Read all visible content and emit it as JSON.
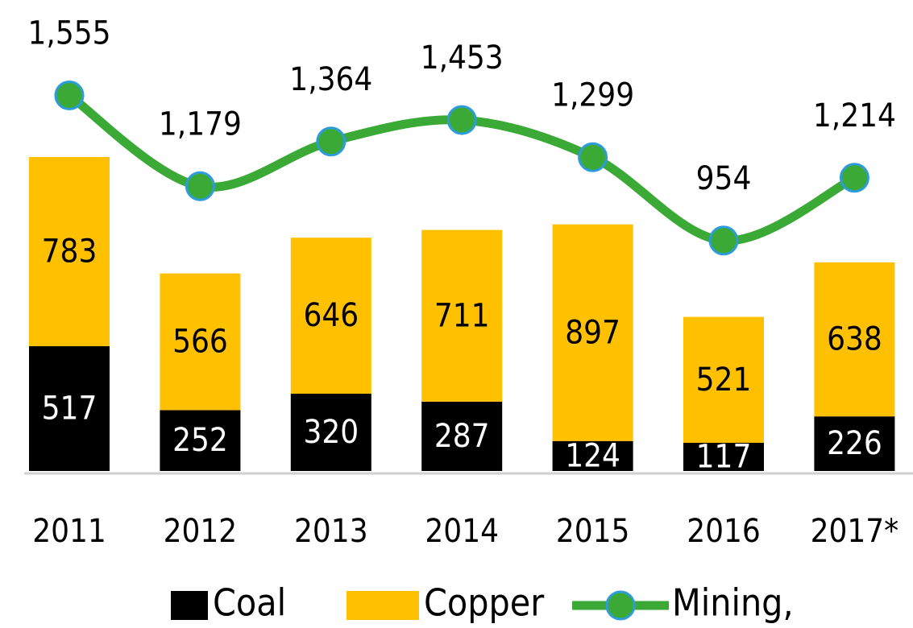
{
  "chart_data": {
    "type": "bar-line",
    "categories": [
      "2011",
      "2012",
      "2013",
      "2014",
      "2015",
      "2016",
      "2017*"
    ],
    "ylim": [
      0,
      1900
    ],
    "series": [
      {
        "name": "Coal",
        "type": "bar",
        "color": "#000000",
        "label_color": "#ffffff",
        "values": [
          517,
          252,
          320,
          287,
          124,
          117,
          226
        ]
      },
      {
        "name": "Copper",
        "type": "bar",
        "color": "#ffc000",
        "label_color": "#000000",
        "values": [
          783,
          566,
          646,
          711,
          897,
          521,
          638
        ]
      },
      {
        "name": "Mining,",
        "type": "line",
        "color": "#3aa935",
        "marker_edge": "#2e9cdb",
        "values": [
          1555,
          1179,
          1364,
          1453,
          1299,
          954,
          1214
        ],
        "value_labels": [
          "1,555",
          "1,179",
          "1,364",
          "1,453",
          "1,299",
          "954",
          "1,214"
        ]
      }
    ]
  }
}
